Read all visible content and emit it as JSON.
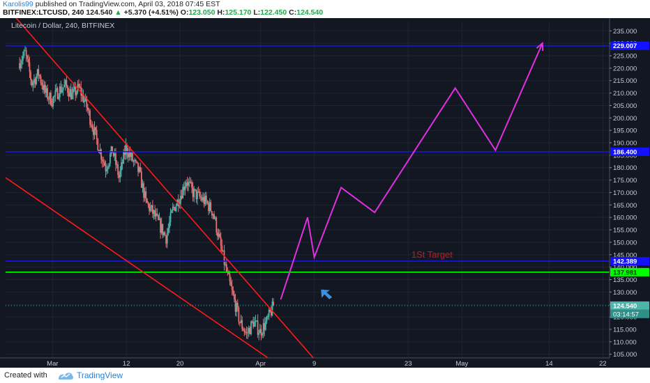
{
  "header": {
    "author": "Karolis99",
    "published_text": "published on TradingView.com, April 03, 2018 07:45 EST",
    "symbol": "BITFINEX:LTCUSD, 240",
    "price": "124.540",
    "change": "+5.370 (+4.51%)",
    "open_label": "O:",
    "open": "123.050",
    "high_label": "H:",
    "high": "125.170",
    "low_label": "L:",
    "low": "122.450",
    "close_label": "C:",
    "close": "124.540"
  },
  "footer": {
    "created_with": "Created with",
    "brand": "TradingView"
  },
  "colors": {
    "background": "#131722",
    "grid": "#1e2433",
    "candle_up": "#4db6ac",
    "candle_down": "#e57373",
    "channel": "#ff1a1a",
    "level": "#1212ff",
    "support": "#00ff00",
    "projection": "#e030e0",
    "arrow": "#3f8fe0",
    "target_text": "#b82020"
  },
  "chart_data": {
    "type": "candlestick",
    "title": "Litecoin / Dollar, 240, BITFINEX",
    "ylim": [
      103.5,
      239
    ],
    "y_ticks": [
      "105.000",
      "110.000",
      "115.000",
      "120.000",
      "125.000",
      "130.000",
      "135.000",
      "140.000",
      "145.000",
      "150.000",
      "155.000",
      "160.000",
      "165.000",
      "170.000",
      "175.000",
      "180.000",
      "185.000",
      "190.000",
      "195.000",
      "200.000",
      "205.000",
      "210.000",
      "215.000",
      "220.000",
      "225.000",
      "230.000",
      "235.000"
    ],
    "x_ticks": [
      {
        "label": "Mar",
        "date": "2018-03-01"
      },
      {
        "label": "12",
        "date": "2018-03-12"
      },
      {
        "label": "20",
        "date": "2018-03-20"
      },
      {
        "label": "Apr",
        "date": "2018-04-01"
      },
      {
        "label": "9",
        "date": "2018-04-09"
      },
      {
        "label": "23",
        "date": "2018-04-23"
      },
      {
        "label": "May",
        "date": "2018-05-01"
      },
      {
        "label": "14",
        "date": "2018-05-14"
      },
      {
        "label": "22",
        "date": "2018-05-22"
      }
    ],
    "price_path": [
      [
        "2018-02-24",
        222
      ],
      [
        "2018-02-25",
        226
      ],
      [
        "2018-02-26",
        214
      ],
      [
        "2018-02-27",
        218
      ],
      [
        "2018-02-28",
        210
      ],
      [
        "2018-03-01",
        207
      ],
      [
        "2018-03-02",
        211
      ],
      [
        "2018-03-03",
        213
      ],
      [
        "2018-03-04",
        209
      ],
      [
        "2018-03-05",
        212
      ],
      [
        "2018-03-06",
        206
      ],
      [
        "2018-03-07",
        197
      ],
      [
        "2018-03-08",
        188
      ],
      [
        "2018-03-09",
        180
      ],
      [
        "2018-03-10",
        187
      ],
      [
        "2018-03-11",
        176
      ],
      [
        "2018-03-12",
        188
      ],
      [
        "2018-03-13",
        183
      ],
      [
        "2018-03-14",
        178
      ],
      [
        "2018-03-15",
        166
      ],
      [
        "2018-03-16",
        162
      ],
      [
        "2018-03-17",
        157
      ],
      [
        "2018-03-18",
        152
      ],
      [
        "2018-03-19",
        163
      ],
      [
        "2018-03-20",
        168
      ],
      [
        "2018-03-21",
        175
      ],
      [
        "2018-03-22",
        170
      ],
      [
        "2018-03-23",
        168
      ],
      [
        "2018-03-24",
        166
      ],
      [
        "2018-03-25",
        162
      ],
      [
        "2018-03-26",
        150
      ],
      [
        "2018-03-27",
        138
      ],
      [
        "2018-03-28",
        128
      ],
      [
        "2018-03-29",
        118
      ],
      [
        "2018-03-30",
        113
      ],
      [
        "2018-03-31",
        118
      ],
      [
        "2018-04-01",
        114
      ],
      [
        "2018-04-02",
        118
      ],
      [
        "2018-04-03",
        124.54
      ]
    ],
    "horizontal_levels": [
      {
        "label": "229.007",
        "value": 229.007,
        "color": "#1212ff"
      },
      {
        "label": "186.400",
        "value": 186.4,
        "color": "#1212ff"
      },
      {
        "label": "142.389",
        "value": 142.389,
        "color": "#1212ff"
      },
      {
        "label": "137.981",
        "value": 137.981,
        "color": "#00ff00"
      }
    ],
    "last_price": {
      "label": "124.540",
      "value": 124.54,
      "countdown": "03:14:57"
    },
    "channel_lines": [
      [
        [
          "2018-02-22",
          245
        ],
        [
          "2018-04-10",
          100
        ]
      ],
      [
        [
          "2018-02-22",
          176
        ],
        [
          "2018-04-04",
          100
        ]
      ]
    ],
    "projection_path": [
      [
        "2018-04-04",
        127
      ],
      [
        "2018-04-08",
        160
      ],
      [
        "2018-04-09",
        144
      ],
      [
        "2018-04-13",
        172
      ],
      [
        "2018-04-18",
        162
      ],
      [
        "2018-04-30",
        212
      ],
      [
        "2018-05-06",
        187
      ],
      [
        "2018-05-13",
        230
      ]
    ],
    "annotations": [
      {
        "text": "1St Target",
        "date": "2018-04-27",
        "value": 145
      }
    ]
  }
}
